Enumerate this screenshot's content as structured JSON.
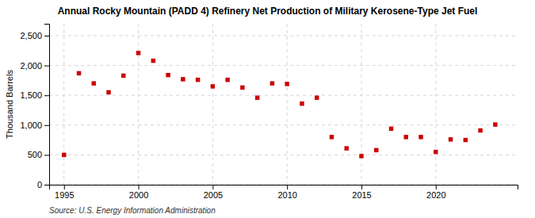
{
  "chart_data": {
    "type": "scatter",
    "title": "Annual Rocky Mountain (PADD 4) Refinery Net Production of Military Kerosene-Type Jet Fuel",
    "ylabel": "Thousand Barrels",
    "source": "Source: U.S. Energy Information Administration",
    "x": [
      1995,
      1996,
      1997,
      1998,
      1999,
      2000,
      2001,
      2002,
      2003,
      2004,
      2005,
      2006,
      2007,
      2008,
      2009,
      2010,
      2011,
      2012,
      2013,
      2014,
      2015,
      2016,
      2017,
      2018,
      2019,
      2020,
      2021,
      2022,
      2023,
      2024
    ],
    "values": [
      500,
      1870,
      1700,
      1550,
      1830,
      2210,
      2080,
      1840,
      1770,
      1760,
      1650,
      1760,
      1630,
      1460,
      1700,
      1690,
      1360,
      1460,
      800,
      610,
      480,
      580,
      940,
      800,
      800,
      550,
      760,
      750,
      910,
      1010
    ],
    "color": "#cc0000",
    "marker": "square",
    "grid": true,
    "xlim": [
      1994,
      2025.5
    ],
    "ylim": [
      0,
      2700
    ],
    "xticks": [
      1995,
      2000,
      2005,
      2010,
      2015,
      2020
    ],
    "yticks": [
      0,
      500,
      {
        "value": 1000,
        "label": "1,000"
      },
      {
        "value": 1500,
        "label": "1,500"
      },
      {
        "value": 2000,
        "label": "2,000"
      },
      {
        "value": 2500,
        "label": "2,500"
      }
    ]
  }
}
